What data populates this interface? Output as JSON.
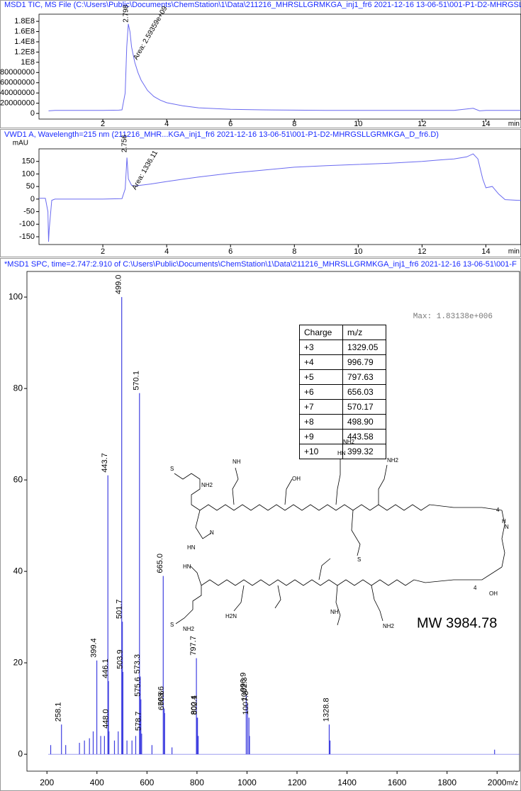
{
  "chart_data": [
    {
      "type": "line",
      "title": "MSD1 TIC, MS File (C:\\Users\\Public\\Documents\\ChemStation\\1\\Data\\211216_MHRSLLGRMKGA_inj1_fr6 2021-12-16 13-06-51\\001-P1-D2-MHRGSLL",
      "x_label": "min",
      "color": "#6a6af0",
      "peak": {
        "x": 2.798,
        "area_label": "Area: 2.59359e+09"
      },
      "xlim": [
        0,
        15.1
      ],
      "ylim": [
        -11000000,
        194000000
      ],
      "xticks": [
        2,
        4,
        6,
        8,
        10,
        12,
        14
      ],
      "yticks": [
        0,
        20000000,
        40000000,
        60000000,
        80000000,
        {
          "value": 100000000,
          "label": "1E8"
        },
        {
          "value": 120000000,
          "label": "1.2E8"
        },
        {
          "value": 140000000,
          "label": "1.4E8"
        },
        {
          "value": 160000000,
          "label": "1.6E8"
        },
        {
          "value": 180000000,
          "label": "1.8E8"
        }
      ],
      "x": [
        0.3,
        0.5,
        1,
        1.5,
        2,
        2.5,
        2.6,
        2.7,
        2.75,
        2.798,
        2.85,
        2.9,
        3.0,
        3.1,
        3.2,
        3.4,
        3.6,
        3.8,
        4.0,
        4.5,
        5,
        6,
        7,
        8,
        9,
        10,
        11,
        12,
        13,
        13.6,
        13.8,
        14,
        15,
        15.1
      ],
      "values": [
        5000000,
        6000000,
        6000000,
        6000000,
        6000000,
        6500000,
        7000000,
        40000000,
        130000000,
        175000000,
        160000000,
        130000000,
        100000000,
        80000000,
        65000000,
        45000000,
        33000000,
        26000000,
        21000000,
        15000000,
        11000000,
        8000000,
        7000000,
        6500000,
        6000000,
        6000000,
        6000000,
        6000000,
        6000000,
        10000000,
        5000000,
        6000000,
        6000000,
        6000000
      ]
    },
    {
      "type": "line",
      "title": "VWD1 A, Wavelength=215 nm (211216_MHR...KGA_inj1_fr6 2021-12-16 13-06-51\\001-P1-D2-MHRGSLLGRMKGA_D_fr6.D)",
      "x_label": "min",
      "y_label": "mAU",
      "color": "#6a6af0",
      "peak": {
        "x": 2.756,
        "area_label": "Area: 1336.11"
      },
      "xlim": [
        0,
        15.1
      ],
      "ylim": [
        -181,
        200
      ],
      "xticks": [
        2,
        4,
        6,
        8,
        10,
        12,
        14
      ],
      "yticks": [
        -150,
        -100,
        -50,
        0,
        50,
        100,
        150
      ],
      "x": [
        0,
        0.2,
        0.28,
        0.3,
        0.32,
        0.4,
        0.5,
        1,
        2,
        2.6,
        2.7,
        2.756,
        2.8,
        2.9,
        3,
        3.5,
        4,
        5,
        6,
        7,
        8,
        9,
        10,
        11,
        12,
        12.5,
        13,
        13.4,
        13.6,
        13.75,
        13.9,
        14,
        14.2,
        14.4,
        14.6,
        15,
        15.1
      ],
      "values": [
        3,
        3,
        -50,
        -170,
        -120,
        -5,
        0,
        0,
        0,
        2,
        40,
        165,
        80,
        55,
        52,
        60,
        70,
        88,
        103,
        115,
        127,
        133,
        138,
        143,
        150,
        155,
        160,
        168,
        180,
        160,
        80,
        45,
        50,
        20,
        -2,
        -5,
        -5
      ]
    },
    {
      "type": "stick",
      "title": "*MSD1 SPC, time=2.747:2.910 of C:\\Users\\Public\\Documents\\ChemStation\\1\\Data\\211216_MHRSLLGRMKGA_inj1_fr6 2021-12-16 13-06-51\\001-F",
      "x_label": "m/z",
      "max_label": "Max: 1.83138e+006",
      "annotation": "MW 3984.78",
      "color": "#3f3fe0",
      "xlim": [
        120,
        2090
      ],
      "ylim": [
        -3.7,
        105.6
      ],
      "xticks": [
        200,
        400,
        600,
        800,
        1000,
        1200,
        1400,
        1600,
        1800,
        2000
      ],
      "yticks": [
        0,
        20,
        40,
        60,
        80,
        100
      ],
      "x": [
        215,
        258.1,
        275,
        330,
        350,
        370,
        385,
        399.4,
        415,
        430,
        443.7,
        446.1,
        448,
        470,
        485,
        499,
        501.7,
        503.9,
        520,
        540,
        555,
        570.1,
        573.3,
        575.6,
        578.7,
        620,
        665,
        668.6,
        670.6,
        700,
        797.7,
        800.4,
        802.1,
        805,
        996.9,
        1002.3,
        1007.8,
        1010,
        1328.8,
        1332,
        1990
      ],
      "values": [
        2,
        6.5,
        2,
        2.5,
        3,
        3.5,
        5,
        20.5,
        4,
        4,
        61,
        16,
        5,
        3,
        5,
        100,
        29,
        18,
        3,
        3,
        4,
        79,
        17,
        12,
        4.5,
        2,
        39,
        10,
        9,
        1.5,
        21,
        8,
        8,
        4,
        13,
        11,
        8,
        4,
        6.5,
        3,
        1
      ],
      "peak_labels": [
        null,
        "258.1",
        null,
        null,
        null,
        null,
        null,
        "399.4",
        null,
        null,
        "443.7",
        "446.1",
        "448.0",
        null,
        null,
        "499.0",
        "501.7",
        "503.9",
        null,
        null,
        null,
        "570.1",
        "573.3",
        "575.6",
        "578.7",
        null,
        "665.0",
        "668.6",
        "670.6",
        null,
        "797.7",
        "800.4",
        "802.1",
        null,
        "996.9",
        "1002.3",
        "1007.8",
        null,
        "1328.8",
        null,
        null
      ]
    }
  ],
  "table": {
    "header": [
      "Charge",
      "mᵢ/z"
    ],
    "rows": [
      [
        "+3",
        "1329.05"
      ],
      [
        "+4",
        "996.79"
      ],
      [
        "+5",
        "797.63"
      ],
      [
        "+6",
        "656.03"
      ],
      [
        "+7",
        "570.17"
      ],
      [
        "+8",
        "498.90"
      ],
      [
        "+9",
        "443.58"
      ],
      [
        "+10",
        "399.32"
      ]
    ]
  },
  "structure": {
    "labels": [
      "S",
      "NH2",
      "HN",
      "N",
      "NH",
      "OH",
      "HN",
      "NH2",
      "S",
      "NH2",
      "NH2",
      "H2N",
      "S",
      "NH",
      "HN",
      "NH2",
      "OH",
      "4",
      "4",
      "H",
      "N"
    ]
  }
}
